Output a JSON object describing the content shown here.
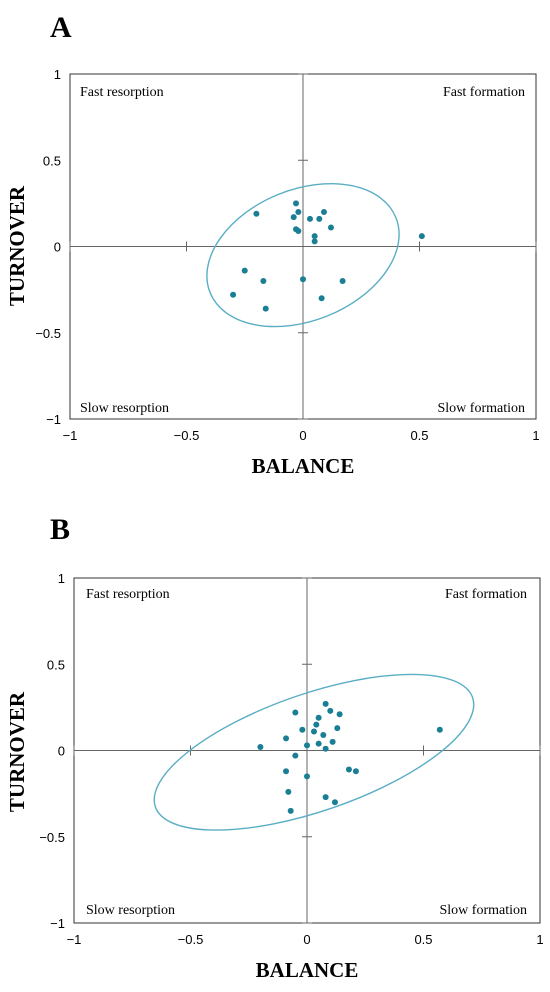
{
  "chart_data": [
    {
      "type": "scatter",
      "panel_label": "A",
      "xlabel": "BALANCE",
      "ylabel": "TURNOVER",
      "xlim": [
        -1,
        1
      ],
      "ylim": [
        -1,
        1
      ],
      "x_ticks": [
        -1,
        -0.5,
        0,
        0.5,
        1
      ],
      "y_ticks": [
        1,
        0.5,
        0,
        -0.5,
        -1
      ],
      "x_tick_labels": [
        "−1",
        "−0.5",
        "0",
        "0.5",
        "1"
      ],
      "y_tick_labels": [
        "1",
        "0.5",
        "0",
        "−0.5",
        "−1"
      ],
      "quadrant_labels": {
        "top_left": "Fast resorption",
        "top_right": "Fast formation",
        "bottom_left": "Slow resorption",
        "bottom_right": "Slow formation"
      },
      "point_color": "#1a7f94",
      "ellipse_color": "#5aaec4",
      "ellipse": {
        "cx": 0.0,
        "cy": -0.05,
        "rx": 0.43,
        "ry": 0.38,
        "angle": 22
      },
      "points": [
        {
          "x": -0.03,
          "y": 0.25
        },
        {
          "x": -0.2,
          "y": 0.19
        },
        {
          "x": -0.04,
          "y": 0.17
        },
        {
          "x": -0.02,
          "y": 0.2
        },
        {
          "x": 0.03,
          "y": 0.16
        },
        {
          "x": 0.07,
          "y": 0.16
        },
        {
          "x": 0.09,
          "y": 0.2
        },
        {
          "x": 0.12,
          "y": 0.11
        },
        {
          "x": -0.03,
          "y": 0.1
        },
        {
          "x": -0.02,
          "y": 0.09
        },
        {
          "x": 0.05,
          "y": 0.06
        },
        {
          "x": 0.05,
          "y": 0.03
        },
        {
          "x": 0.51,
          "y": 0.06
        },
        {
          "x": -0.25,
          "y": -0.14
        },
        {
          "x": -0.17,
          "y": -0.2
        },
        {
          "x": 0.0,
          "y": -0.19
        },
        {
          "x": 0.17,
          "y": -0.2
        },
        {
          "x": -0.3,
          "y": -0.28
        },
        {
          "x": 0.08,
          "y": -0.3
        },
        {
          "x": -0.16,
          "y": -0.36
        }
      ]
    },
    {
      "type": "scatter",
      "panel_label": "B",
      "xlabel": "BALANCE",
      "ylabel": "TURNOVER",
      "xlim": [
        -1,
        1
      ],
      "ylim": [
        -1,
        1
      ],
      "x_ticks": [
        -1,
        -0.5,
        0,
        0.5,
        1
      ],
      "y_ticks": [
        1,
        0.5,
        0,
        -0.5,
        -1
      ],
      "x_tick_labels": [
        "−1",
        "−0.5",
        "0",
        "0.5",
        "1"
      ],
      "y_tick_labels": [
        "1",
        "0.5",
        "0",
        "−0.5",
        "−1"
      ],
      "quadrant_labels": {
        "top_left": "Fast resorption",
        "top_right": "Fast formation",
        "bottom_left": "Slow resorption",
        "bottom_right": "Slow formation"
      },
      "point_color": "#1a7f94",
      "ellipse_color": "#5aaec4",
      "ellipse": {
        "cx": 0.03,
        "cy": -0.01,
        "rx": 0.72,
        "ry": 0.34,
        "angle": 19
      },
      "points": [
        {
          "x": 0.08,
          "y": 0.27
        },
        {
          "x": -0.05,
          "y": 0.22
        },
        {
          "x": 0.1,
          "y": 0.23
        },
        {
          "x": 0.14,
          "y": 0.21
        },
        {
          "x": 0.05,
          "y": 0.19
        },
        {
          "x": 0.04,
          "y": 0.15
        },
        {
          "x": -0.02,
          "y": 0.12
        },
        {
          "x": 0.03,
          "y": 0.11
        },
        {
          "x": 0.13,
          "y": 0.13
        },
        {
          "x": 0.57,
          "y": 0.12
        },
        {
          "x": 0.07,
          "y": 0.09
        },
        {
          "x": -0.09,
          "y": 0.07
        },
        {
          "x": 0.05,
          "y": 0.04
        },
        {
          "x": 0.11,
          "y": 0.05
        },
        {
          "x": 0.0,
          "y": 0.03
        },
        {
          "x": -0.2,
          "y": 0.02
        },
        {
          "x": 0.08,
          "y": 0.01
        },
        {
          "x": -0.05,
          "y": -0.03
        },
        {
          "x": -0.09,
          "y": -0.12
        },
        {
          "x": 0.0,
          "y": -0.15
        },
        {
          "x": 0.18,
          "y": -0.11
        },
        {
          "x": 0.21,
          "y": -0.12
        },
        {
          "x": -0.08,
          "y": -0.24
        },
        {
          "x": 0.08,
          "y": -0.27
        },
        {
          "x": 0.12,
          "y": -0.3
        },
        {
          "x": -0.07,
          "y": -0.35
        }
      ]
    }
  ]
}
